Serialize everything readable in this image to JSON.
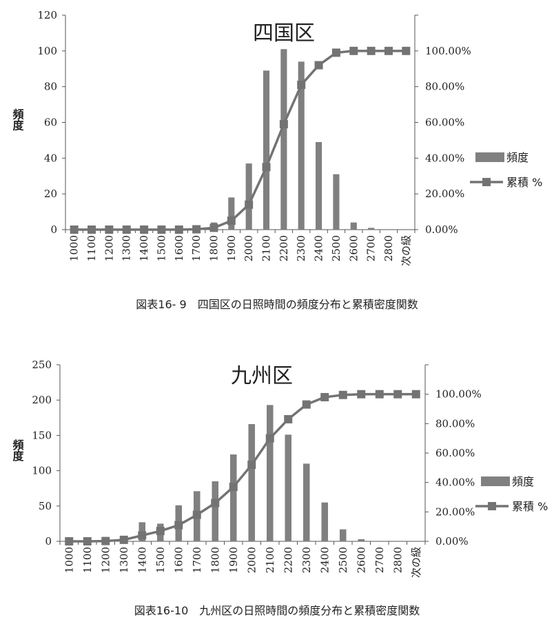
{
  "colors": {
    "bar": "#808080",
    "line": "#737373",
    "axis": "#555555",
    "text": "#222222"
  },
  "charts": [
    {
      "caption": "図表16- 9　四国区の日照時間の頻度分布と累積密度関数",
      "chart_data": {
        "type": "bar+line",
        "title": "四国区",
        "ylabel": "頻度",
        "categories": [
          "1000",
          "1100",
          "1200",
          "1300",
          "1400",
          "1500",
          "1600",
          "1700",
          "1800",
          "1900",
          "2000",
          "2100",
          "2200",
          "2300",
          "2400",
          "2500",
          "2600",
          "2700",
          "2800",
          "次の級"
        ],
        "y_ticks": [
          "0",
          "20",
          "40",
          "60",
          "80",
          "100",
          "120"
        ],
        "ylim": [
          0,
          120
        ],
        "y2_ticks": [
          "0.00%",
          "20.00%",
          "40.00%",
          "60.00%",
          "80.00%",
          "100.00%"
        ],
        "y2lim": [
          0,
          1.2
        ],
        "series": [
          {
            "name": "頻度",
            "type": "bar",
            "axis": "left",
            "values": [
              0,
              0,
              0,
              0,
              0,
              0,
              0,
              1,
              4,
              18,
              37,
              89,
              101,
              94,
              49,
              31,
              4,
              1,
              0,
              0
            ]
          },
          {
            "name": "累積 %",
            "type": "line",
            "axis": "right",
            "values": [
              0,
              0,
              0,
              0,
              0,
              0,
              0,
              0.002,
              0.01,
              0.05,
              0.14,
              0.35,
              0.59,
              0.81,
              0.92,
              0.99,
              1.0,
              1.0,
              1.0,
              1.0
            ]
          }
        ],
        "legend": {
          "position": "right",
          "items": [
            "頻度",
            "累積 %"
          ]
        }
      }
    },
    {
      "caption": "図表16-10　九州区の日照時間の頻度分布と累積密度関数",
      "chart_data": {
        "type": "bar+line",
        "title": "九州区",
        "ylabel": "頻度",
        "categories": [
          "1000",
          "1100",
          "1200",
          "1300",
          "1400",
          "1500",
          "1600",
          "1700",
          "1800",
          "1900",
          "2000",
          "2100",
          "2200",
          "2300",
          "2400",
          "2500",
          "2600",
          "2700",
          "2800",
          "次の級"
        ],
        "y_ticks": [
          "0",
          "50",
          "100",
          "150",
          "200",
          "250"
        ],
        "ylim": [
          0,
          250
        ],
        "y2_ticks": [
          "0.00%",
          "20.00%",
          "40.00%",
          "60.00%",
          "80.00%",
          "100.00%"
        ],
        "y2lim": [
          0,
          1.2
        ],
        "series": [
          {
            "name": "頻度",
            "type": "bar",
            "axis": "left",
            "values": [
              0,
              0,
              2,
              7,
              27,
              25,
              51,
              71,
              85,
              123,
              166,
              193,
              151,
              110,
              55,
              17,
              3,
              0,
              0,
              0
            ]
          },
          {
            "name": "累積 %",
            "type": "line",
            "axis": "right",
            "values": [
              0,
              0,
              0.002,
              0.01,
              0.04,
              0.07,
              0.11,
              0.18,
              0.26,
              0.37,
              0.52,
              0.7,
              0.83,
              0.93,
              0.98,
              0.995,
              1.0,
              1.0,
              1.0,
              1.0
            ]
          }
        ],
        "legend": {
          "position": "right",
          "items": [
            "頻度",
            "累積 %"
          ]
        }
      }
    }
  ]
}
